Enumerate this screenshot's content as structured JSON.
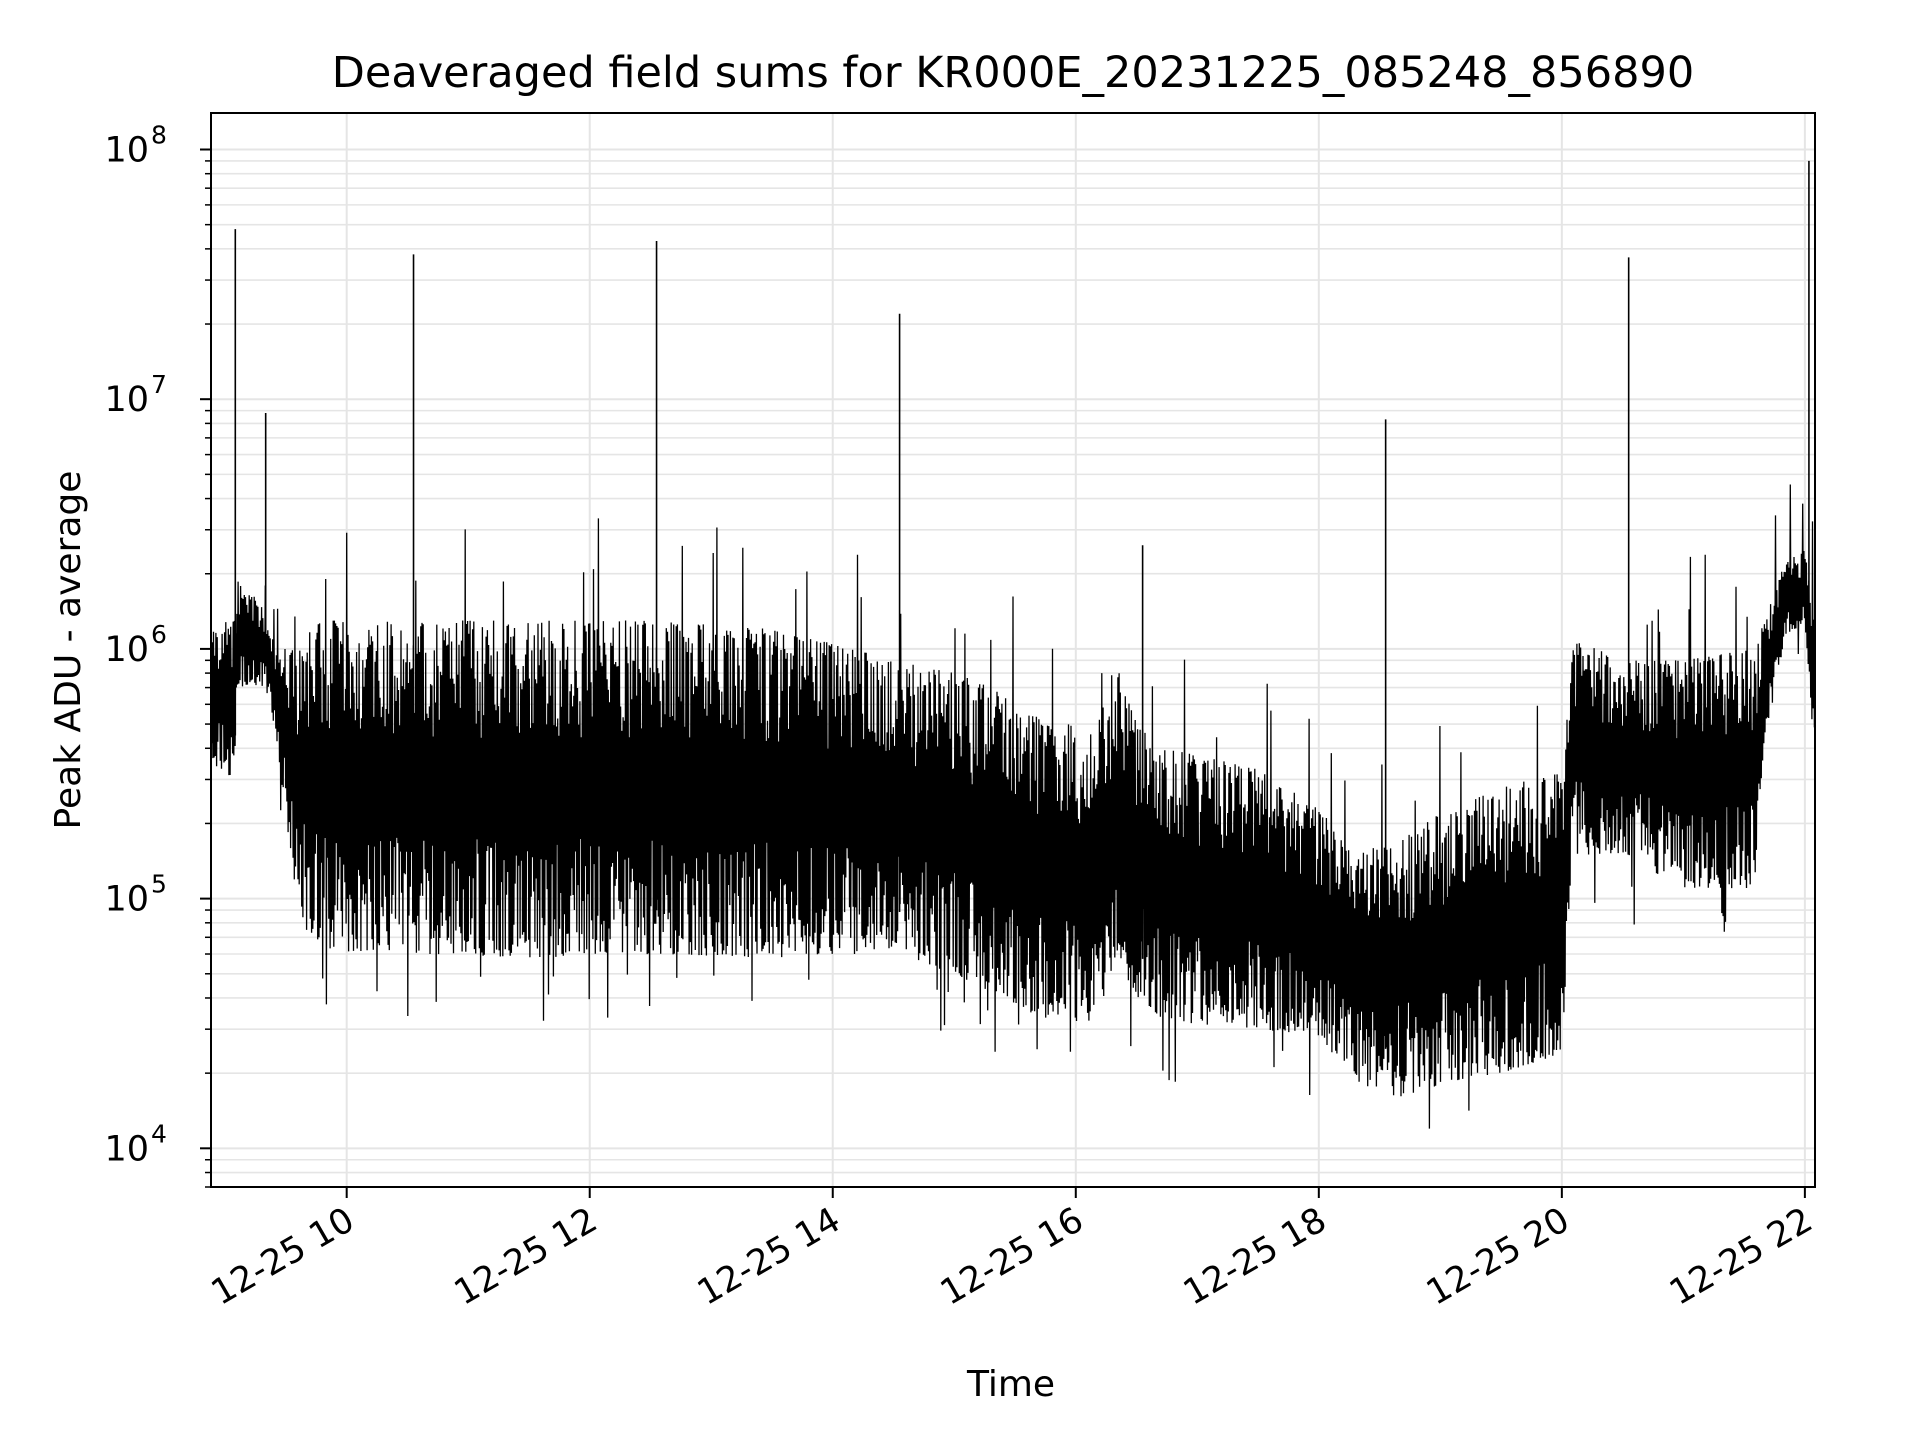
{
  "chart_data": {
    "type": "line",
    "title": "Deaveraged field sums for KR000E_20231225_085248_856890",
    "xlabel": "Time",
    "ylabel": "Peak ADU - average",
    "yscale": "log",
    "ylim": [
      7000,
      140000000
    ],
    "xlim": [
      "2023-12-25 08:53",
      "2023-12-25 22:05"
    ],
    "grid": true,
    "line_color": "#000000",
    "grid_color": "#e5e5e5",
    "x_ticks": [
      {
        "value": "2023-12-25 10:00",
        "label": "12-25 10"
      },
      {
        "value": "2023-12-25 12:00",
        "label": "12-25 12"
      },
      {
        "value": "2023-12-25 14:00",
        "label": "12-25 14"
      },
      {
        "value": "2023-12-25 16:00",
        "label": "12-25 16"
      },
      {
        "value": "2023-12-25 18:00",
        "label": "12-25 18"
      },
      {
        "value": "2023-12-25 20:00",
        "label": "12-25 20"
      },
      {
        "value": "2023-12-25 22:00",
        "label": "12-25 22"
      }
    ],
    "y_ticks": [
      {
        "value": 10000,
        "base": "10",
        "exp": "4"
      },
      {
        "value": 100000,
        "base": "10",
        "exp": "5"
      },
      {
        "value": 1000000,
        "base": "10",
        "exp": "6"
      },
      {
        "value": 10000000,
        "base": "10",
        "exp": "7"
      },
      {
        "value": 100000000,
        "base": "10",
        "exp": "8"
      }
    ],
    "series": [
      {
        "envelope": [
          {
            "x": "2023-12-25 08:53",
            "low": 350000,
            "high": 1300000
          },
          {
            "x": "2023-12-25 09:05",
            "low": 300000,
            "high": 1300000
          },
          {
            "x": "2023-12-25 09:06",
            "low": 700000,
            "high": 2000000
          },
          {
            "x": "2023-12-25 09:20",
            "low": 700000,
            "high": 1400000
          },
          {
            "x": "2023-12-25 09:25",
            "low": 450000,
            "high": 1000000
          },
          {
            "x": "2023-12-25 09:30",
            "low": 200000,
            "high": 1000000
          },
          {
            "x": "2023-12-25 09:35",
            "low": 100000,
            "high": 1000000
          },
          {
            "x": "2023-12-25 09:40",
            "low": 75000,
            "high": 1200000
          },
          {
            "x": "2023-12-25 09:50",
            "low": 62000,
            "high": 1300000
          },
          {
            "x": "2023-12-25 10:30",
            "low": 60000,
            "high": 1300000
          },
          {
            "x": "2023-12-25 11:30",
            "low": 58000,
            "high": 1300000
          },
          {
            "x": "2023-12-25 12:30",
            "low": 60000,
            "high": 1300000
          },
          {
            "x": "2023-12-25 13:30",
            "low": 58000,
            "high": 1200000
          },
          {
            "x": "2023-12-25 14:00",
            "low": 60000,
            "high": 1050000
          },
          {
            "x": "2023-12-25 14:30",
            "low": 60000,
            "high": 900000
          },
          {
            "x": "2023-12-25 15:00",
            "low": 50000,
            "high": 800000
          },
          {
            "x": "2023-12-25 15:30",
            "low": 38000,
            "high": 650000
          },
          {
            "x": "2023-12-25 15:45",
            "low": 32000,
            "high": 500000
          },
          {
            "x": "2023-12-25 16:10",
            "low": 32000,
            "high": 500000
          },
          {
            "x": "2023-12-25 16:20",
            "low": 60000,
            "high": 900000
          },
          {
            "x": "2023-12-25 16:30",
            "low": 40000,
            "high": 500000
          },
          {
            "x": "2023-12-25 16:45",
            "low": 32000,
            "high": 400000
          },
          {
            "x": "2023-12-25 17:30",
            "low": 30000,
            "high": 330000
          },
          {
            "x": "2023-12-25 18:00",
            "low": 28000,
            "high": 230000
          },
          {
            "x": "2023-12-25 18:20",
            "low": 18000,
            "high": 150000
          },
          {
            "x": "2023-12-25 18:40",
            "low": 16000,
            "high": 180000
          },
          {
            "x": "2023-12-25 19:00",
            "low": 18000,
            "high": 220000
          },
          {
            "x": "2023-12-25 19:30",
            "low": 20000,
            "high": 280000
          },
          {
            "x": "2023-12-25 20:00",
            "low": 24000,
            "high": 320000
          },
          {
            "x": "2023-12-25 20:05",
            "low": 150000,
            "high": 1100000
          },
          {
            "x": "2023-12-25 20:30",
            "low": 150000,
            "high": 900000
          },
          {
            "x": "2023-12-25 21:00",
            "low": 110000,
            "high": 900000
          },
          {
            "x": "2023-12-25 21:35",
            "low": 110000,
            "high": 1000000
          },
          {
            "x": "2023-12-25 21:40",
            "low": 400000,
            "high": 1300000
          },
          {
            "x": "2023-12-25 21:50",
            "low": 1100000,
            "high": 2200000
          },
          {
            "x": "2023-12-25 22:00",
            "low": 1300000,
            "high": 2500000
          },
          {
            "x": "2023-12-25 22:05",
            "low": 350000,
            "high": 1200000
          }
        ],
        "spikes": [
          {
            "x": "2023-12-25 09:05",
            "y": 48000000
          },
          {
            "x": "2023-12-25 09:20",
            "y": 8800000
          },
          {
            "x": "2023-12-25 10:33",
            "y": 38000000
          },
          {
            "x": "2023-12-25 12:33",
            "y": 43000000
          },
          {
            "x": "2023-12-25 14:33",
            "y": 22000000
          },
          {
            "x": "2023-12-25 16:33",
            "y": 2600000
          },
          {
            "x": "2023-12-25 18:33",
            "y": 8300000
          },
          {
            "x": "2023-12-25 20:33",
            "y": 37000000
          },
          {
            "x": "2023-12-25 22:02",
            "y": 90000000
          }
        ]
      }
    ]
  }
}
